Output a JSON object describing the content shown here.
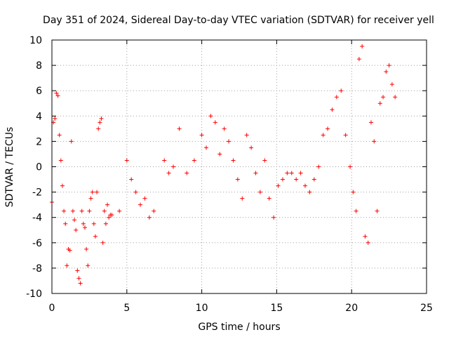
{
  "chart_data": {
    "type": "scatter",
    "title": "Day 351 of 2024, Sidereal Day-to-day VTEC variation (SDTVAR) for receiver yell",
    "xlabel": "GPS time / hours",
    "ylabel": "SDTVAR / TECUs",
    "xlim": [
      0,
      25
    ],
    "ylim": [
      -10,
      10
    ],
    "xticks": [
      0,
      5,
      10,
      15,
      20,
      25
    ],
    "yticks": [
      -10,
      -8,
      -6,
      -4,
      -2,
      0,
      2,
      4,
      6,
      8,
      10
    ],
    "xtick_labels": [
      "0",
      "5",
      "10",
      "15",
      "20",
      "25"
    ],
    "ytick_labels": [
      "-10",
      "-8",
      "-6",
      "-4",
      "-2",
      "0",
      "2",
      "4",
      "6",
      "8",
      "10"
    ],
    "grid": true,
    "marker": "+",
    "color": "#ff0000",
    "series": [
      {
        "name": "SDTVAR",
        "x": [
          0.0,
          0.1,
          0.2,
          0.3,
          0.4,
          0.5,
          0.6,
          0.7,
          0.8,
          0.9,
          1.0,
          1.1,
          1.2,
          1.3,
          1.4,
          1.5,
          1.6,
          1.7,
          1.8,
          1.9,
          2.0,
          2.1,
          2.2,
          2.3,
          2.4,
          2.5,
          2.6,
          2.7,
          2.8,
          2.9,
          3.0,
          3.1,
          3.2,
          3.3,
          3.4,
          3.5,
          3.6,
          3.7,
          3.8,
          3.9,
          4.0,
          4.5,
          5.0,
          5.3,
          5.6,
          5.9,
          6.2,
          6.5,
          6.8,
          7.5,
          7.8,
          8.1,
          8.5,
          9.0,
          9.5,
          10.0,
          10.3,
          10.6,
          10.9,
          11.2,
          11.5,
          11.8,
          12.1,
          12.4,
          12.7,
          13.0,
          13.3,
          13.6,
          13.9,
          14.2,
          14.5,
          14.8,
          15.1,
          15.4,
          15.7,
          16.0,
          16.3,
          16.6,
          16.9,
          17.2,
          17.5,
          17.8,
          18.1,
          18.4,
          18.7,
          19.0,
          19.3,
          19.6,
          19.9,
          20.1,
          20.3,
          20.5,
          20.7,
          20.9,
          21.1,
          21.3,
          21.5,
          21.7,
          21.9,
          22.1,
          22.3,
          22.5,
          22.7,
          22.9
        ],
        "y": [
          -2.8,
          3.5,
          3.8,
          5.8,
          5.6,
          2.5,
          0.5,
          -1.5,
          -3.5,
          -4.5,
          -7.8,
          -6.5,
          -6.6,
          2.0,
          -3.5,
          -4.2,
          -5.0,
          -8.2,
          -8.8,
          -9.2,
          -3.5,
          -4.5,
          -4.8,
          -6.5,
          -7.8,
          -3.5,
          -2.5,
          -2.0,
          -4.5,
          -5.5,
          -2.0,
          3.0,
          3.5,
          3.8,
          -6.0,
          -3.5,
          -4.5,
          -3.0,
          -4.0,
          -3.8,
          -3.8,
          -3.5,
          0.5,
          -1.0,
          -2.0,
          -3.0,
          -2.5,
          -4.0,
          -3.5,
          0.5,
          -0.5,
          0.0,
          3.0,
          -0.5,
          0.5,
          2.5,
          1.5,
          4.0,
          3.5,
          1.0,
          3.0,
          2.0,
          0.5,
          -1.0,
          -2.5,
          2.5,
          1.5,
          -0.5,
          -2.0,
          0.5,
          -2.5,
          -4.0,
          -1.5,
          -1.0,
          -0.5,
          -0.5,
          -1.0,
          -0.5,
          -1.5,
          -2.0,
          -1.0,
          0.0,
          2.5,
          3.0,
          4.5,
          5.5,
          6.0,
          2.5,
          0.0,
          -2.0,
          -3.5,
          8.5,
          9.5,
          -5.5,
          -6.0,
          3.5,
          2.0,
          -3.5,
          5.0,
          5.5,
          7.5,
          8.0,
          6.5,
          5.5
        ]
      }
    ]
  }
}
